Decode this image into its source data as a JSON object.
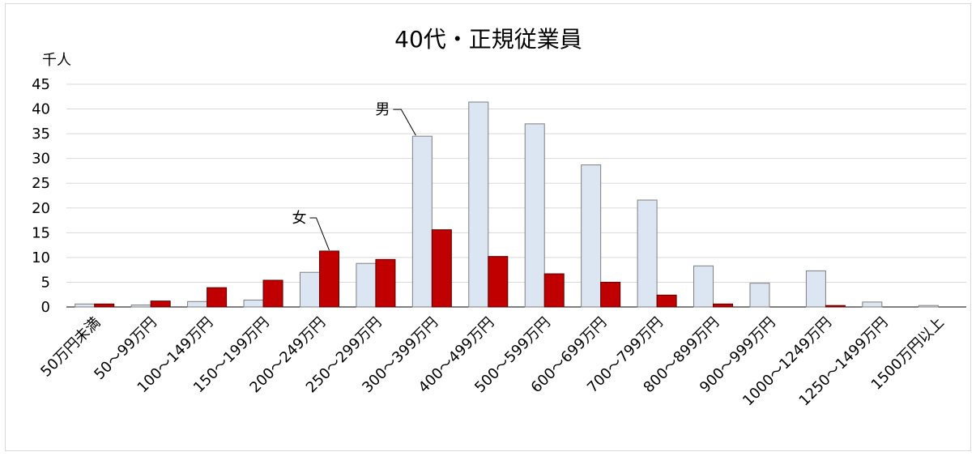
{
  "chart_data": {
    "type": "bar",
    "title": "40代・正規従業員",
    "ylabel": "千人",
    "xlabel": "",
    "ylim": [
      0,
      45
    ],
    "yticks": [
      0,
      5,
      10,
      15,
      20,
      25,
      30,
      35,
      40,
      45
    ],
    "grid": true,
    "categories": [
      "50万円未満",
      "50～99万円",
      "100～149万円",
      "150～199万円",
      "200～249万円",
      "250～299万円",
      "300～399万円",
      "400～499万円",
      "500～599万円",
      "600～699万円",
      "700～799万円",
      "800～899万円",
      "900～999万円",
      "1000～1249万円",
      "1250～1499万円",
      "1500万円以上"
    ],
    "series": [
      {
        "name": "男",
        "color": "#dce6f2",
        "values": [
          0.6,
          0.4,
          1.1,
          1.4,
          7.0,
          8.8,
          34.5,
          41.4,
          37.0,
          28.7,
          21.6,
          8.3,
          4.8,
          7.3,
          1.0,
          0.3
        ]
      },
      {
        "name": "女",
        "color": "#c00000",
        "values": [
          0.6,
          1.2,
          3.9,
          5.4,
          11.3,
          9.6,
          15.6,
          10.2,
          6.7,
          5.0,
          2.4,
          0.6,
          0.0,
          0.3,
          0.0,
          0.0
        ]
      }
    ]
  }
}
